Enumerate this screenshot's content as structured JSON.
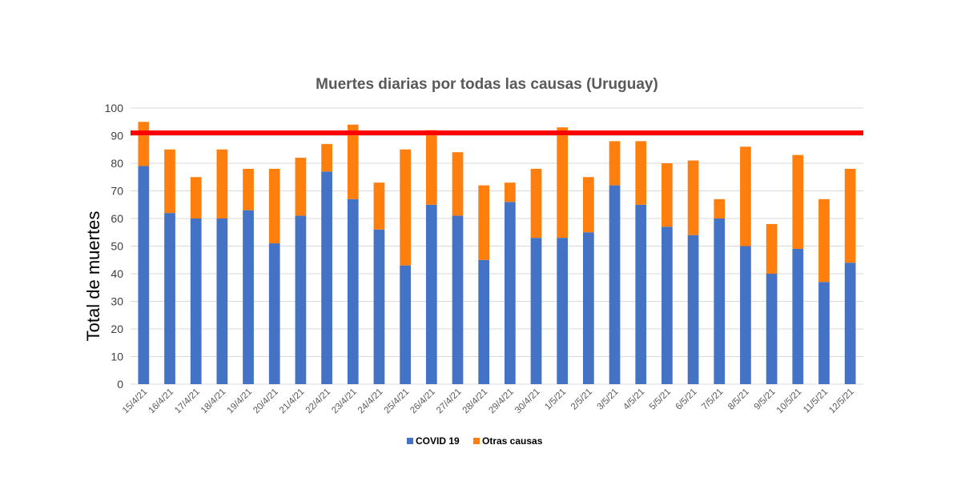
{
  "chart_data": {
    "type": "bar",
    "stacked": true,
    "title": "Muertes diarias  por todas las causas (Uruguay)",
    "xlabel": "",
    "ylabel": "Total de muertes",
    "ylim": [
      0,
      100
    ],
    "yticks": [
      0,
      10,
      20,
      30,
      40,
      50,
      60,
      70,
      80,
      90,
      100
    ],
    "grid": true,
    "legend_position": "bottom",
    "reference_line": {
      "value": 91,
      "color": "#ff0000"
    },
    "categories": [
      "15/4/21",
      "16/4/21",
      "17/4/21",
      "18/4/21",
      "19/4/21",
      "20/4/21",
      "21/4/21",
      "22/4/21",
      "23/4/21",
      "24/4/21",
      "25/4/21",
      "26/4/21",
      "27/4/21",
      "28/4/21",
      "29/4/21",
      "30/4/21",
      "1/5/21",
      "2/5/21",
      "3/5/21",
      "4/5/21",
      "5/5/21",
      "6/5/21",
      "7/5/21",
      "8/5/21",
      "9/5/21",
      "10/5/21",
      "11/5/21",
      "12/5/21"
    ],
    "series": [
      {
        "name": "COVID 19",
        "color": "#4472c4",
        "values": [
          79,
          62,
          60,
          60,
          63,
          51,
          61,
          77,
          67,
          56,
          43,
          65,
          61,
          45,
          66,
          53,
          53,
          55,
          72,
          65,
          57,
          54,
          60,
          50,
          40,
          49,
          37,
          44
        ]
      },
      {
        "name": "Otras causas",
        "color": "#ff7f0e",
        "values": [
          16,
          23,
          15,
          25,
          15,
          27,
          21,
          10,
          27,
          17,
          42,
          27,
          23,
          27,
          7,
          25,
          40,
          20,
          16,
          23,
          23,
          27,
          7,
          36,
          18,
          34,
          30,
          34
        ]
      }
    ]
  }
}
